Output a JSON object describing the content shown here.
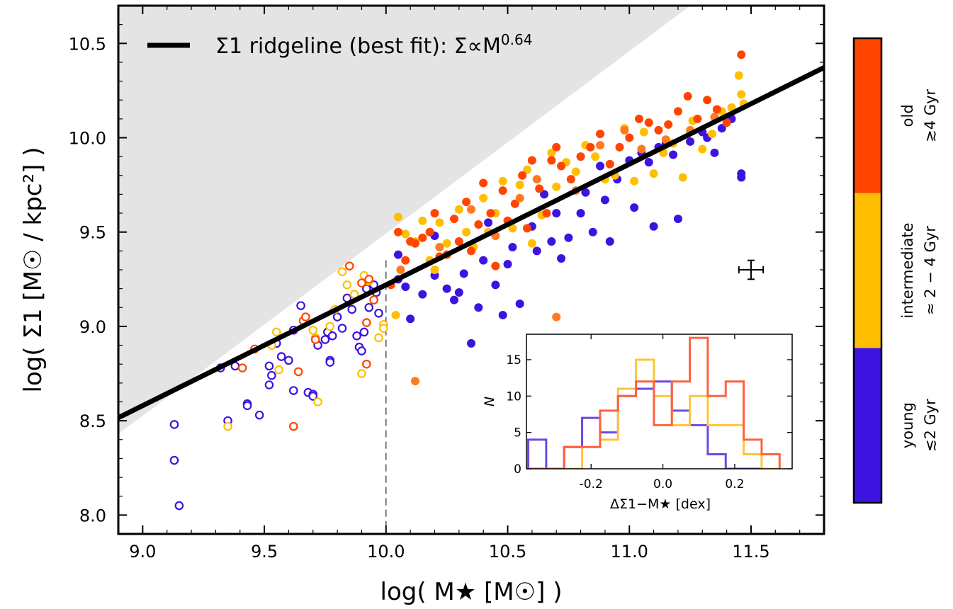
{
  "chart_data": {
    "type": "scatter",
    "xlabel": "log( M★ [M☉] )",
    "ylabel": "log( Σ1 [M☉ / kpc²] )",
    "xlim": [
      8.9,
      11.8
    ],
    "ylim": [
      7.9,
      10.7
    ],
    "xticks": [
      "9.0",
      "9.5",
      "10.0",
      "10.5",
      "11.0",
      "11.5"
    ],
    "yticks": [
      "8.0",
      "8.5",
      "9.0",
      "9.5",
      "10.0",
      "10.5"
    ],
    "grid": false,
    "legend": {
      "placement": "top-left",
      "label": "Σ1 ridgeline (best fit): Σ∝M",
      "exponent": "0.64"
    },
    "ridgeline": {
      "slope": 0.64,
      "pivot_x": 10.0,
      "pivot_y": 9.22
    },
    "forbidden_region": {
      "color": "#e4e4e4",
      "boundary": [
        [
          8.9,
          8.43
        ],
        [
          11.25,
          10.7
        ]
      ]
    },
    "divider_x": 10.0,
    "error_bar": {
      "x": 11.5,
      "y": 9.3,
      "xerr": 0.05,
      "yerr": 0.05
    },
    "colors": {
      "young": "#3d13e0",
      "intermediate": "#ffbf00",
      "old": "#ff4500",
      "mid_old": "#ff7a20",
      "line": "#000000"
    },
    "series": [
      {
        "name": "young",
        "marker": "open",
        "color": "#3d13e0",
        "points": [
          [
            9.13,
            8.48
          ],
          [
            9.13,
            8.29
          ],
          [
            9.15,
            8.05
          ],
          [
            9.32,
            8.78
          ],
          [
            9.35,
            8.5
          ],
          [
            9.38,
            8.79
          ],
          [
            9.43,
            8.59
          ],
          [
            9.43,
            8.58
          ],
          [
            9.48,
            8.53
          ],
          [
            9.52,
            8.79
          ],
          [
            9.52,
            8.69
          ],
          [
            9.53,
            8.74
          ],
          [
            9.55,
            8.91
          ],
          [
            9.57,
            8.84
          ],
          [
            9.6,
            8.82
          ],
          [
            9.62,
            8.66
          ],
          [
            9.62,
            8.98
          ],
          [
            9.65,
            9.11
          ],
          [
            9.68,
            8.65
          ],
          [
            9.7,
            8.64
          ],
          [
            9.7,
            8.63
          ],
          [
            9.72,
            8.9
          ],
          [
            9.75,
            8.93
          ],
          [
            9.76,
            8.97
          ],
          [
            9.77,
            8.82
          ],
          [
            9.77,
            8.81
          ],
          [
            9.78,
            8.95
          ],
          [
            9.8,
            9.05
          ],
          [
            9.82,
            8.99
          ],
          [
            9.84,
            9.15
          ],
          [
            9.86,
            9.09
          ],
          [
            9.88,
            8.95
          ],
          [
            9.89,
            8.89
          ],
          [
            9.9,
            8.87
          ],
          [
            9.91,
            8.97
          ],
          [
            9.92,
            9.2
          ],
          [
            9.93,
            9.1
          ],
          [
            9.95,
            9.22
          ],
          [
            9.96,
            9.18
          ],
          [
            9.97,
            9.07
          ]
        ]
      },
      {
        "name": "intermediate",
        "marker": "open",
        "color": "#ffbf00",
        "points": [
          [
            9.35,
            8.47
          ],
          [
            9.53,
            8.9
          ],
          [
            9.55,
            8.97
          ],
          [
            9.56,
            8.77
          ],
          [
            9.7,
            8.98
          ],
          [
            9.71,
            8.94
          ],
          [
            9.72,
            8.6
          ],
          [
            9.77,
            9.0
          ],
          [
            9.79,
            9.09
          ],
          [
            9.82,
            9.29
          ],
          [
            9.84,
            9.22
          ],
          [
            9.87,
            9.17
          ],
          [
            9.9,
            8.75
          ],
          [
            9.91,
            9.27
          ],
          [
            9.93,
            9.24
          ],
          [
            9.97,
            8.94
          ],
          [
            9.99,
            9.01
          ],
          [
            9.99,
            8.99
          ]
        ]
      },
      {
        "name": "old",
        "marker": "open",
        "color": "#ff4500",
        "points": [
          [
            9.41,
            8.78
          ],
          [
            9.46,
            8.88
          ],
          [
            9.62,
            8.47
          ],
          [
            9.64,
            8.76
          ],
          [
            9.66,
            9.03
          ],
          [
            9.67,
            9.05
          ],
          [
            9.71,
            8.93
          ],
          [
            9.85,
            9.32
          ],
          [
            9.9,
            9.23
          ],
          [
            9.92,
            8.8
          ],
          [
            9.92,
            9.02
          ],
          [
            9.93,
            9.25
          ],
          [
            9.95,
            9.14
          ]
        ]
      },
      {
        "name": "young",
        "marker": "filled",
        "color": "#3d13e0",
        "points": [
          [
            10.05,
            9.38
          ],
          [
            10.05,
            9.25
          ],
          [
            10.08,
            9.21
          ],
          [
            10.1,
            9.04
          ],
          [
            10.15,
            9.17
          ],
          [
            10.2,
            9.48
          ],
          [
            10.2,
            9.27
          ],
          [
            10.25,
            9.2
          ],
          [
            10.28,
            9.14
          ],
          [
            10.3,
            9.18
          ],
          [
            10.32,
            9.28
          ],
          [
            10.35,
            8.91
          ],
          [
            10.38,
            9.1
          ],
          [
            10.4,
            9.35
          ],
          [
            10.42,
            9.55
          ],
          [
            10.45,
            9.22
          ],
          [
            10.48,
            9.06
          ],
          [
            10.5,
            9.33
          ],
          [
            10.52,
            9.42
          ],
          [
            10.55,
            9.12
          ],
          [
            10.6,
            9.53
          ],
          [
            10.62,
            9.4
          ],
          [
            10.65,
            9.7
          ],
          [
            10.68,
            9.45
          ],
          [
            10.7,
            9.6
          ],
          [
            10.72,
            9.36
          ],
          [
            10.75,
            9.47
          ],
          [
            10.8,
            9.6
          ],
          [
            10.82,
            9.71
          ],
          [
            10.85,
            9.5
          ],
          [
            10.88,
            9.85
          ],
          [
            10.9,
            9.67
          ],
          [
            10.92,
            9.45
          ],
          [
            10.95,
            9.78
          ],
          [
            11.0,
            9.88
          ],
          [
            11.02,
            9.63
          ],
          [
            11.05,
            9.92
          ],
          [
            11.08,
            9.87
          ],
          [
            11.1,
            9.53
          ],
          [
            11.12,
            9.95
          ],
          [
            11.15,
            9.97
          ],
          [
            11.18,
            9.91
          ],
          [
            11.2,
            9.57
          ],
          [
            11.25,
            9.98
          ],
          [
            11.3,
            10.03
          ],
          [
            11.32,
            10.0
          ],
          [
            11.35,
            9.92
          ],
          [
            11.38,
            10.05
          ],
          [
            11.42,
            10.1
          ],
          [
            11.46,
            9.79
          ],
          [
            11.46,
            9.81
          ]
        ]
      },
      {
        "name": "intermediate",
        "marker": "filled",
        "color": "#ffbf00",
        "points": [
          [
            10.04,
            9.06
          ],
          [
            10.05,
            9.58
          ],
          [
            10.08,
            9.49
          ],
          [
            10.12,
            9.45
          ],
          [
            10.15,
            9.56
          ],
          [
            10.18,
            9.35
          ],
          [
            10.2,
            9.3
          ],
          [
            10.22,
            9.55
          ],
          [
            10.25,
            9.44
          ],
          [
            10.3,
            9.62
          ],
          [
            10.33,
            9.5
          ],
          [
            10.36,
            9.42
          ],
          [
            10.4,
            9.68
          ],
          [
            10.42,
            9.5
          ],
          [
            10.45,
            9.6
          ],
          [
            10.48,
            9.77
          ],
          [
            10.52,
            9.52
          ],
          [
            10.55,
            9.75
          ],
          [
            10.58,
            9.83
          ],
          [
            10.6,
            9.44
          ],
          [
            10.64,
            9.59
          ],
          [
            10.68,
            9.92
          ],
          [
            10.7,
            9.74
          ],
          [
            10.74,
            9.87
          ],
          [
            10.78,
            9.82
          ],
          [
            10.82,
            9.96
          ],
          [
            10.86,
            9.9
          ],
          [
            10.9,
            9.78
          ],
          [
            10.94,
            9.8
          ],
          [
            10.98,
            10.05
          ],
          [
            11.02,
            9.77
          ],
          [
            11.06,
            10.03
          ],
          [
            11.1,
            9.81
          ],
          [
            11.14,
            9.92
          ],
          [
            11.18,
            9.97
          ],
          [
            11.22,
            9.79
          ],
          [
            11.26,
            10.09
          ],
          [
            11.3,
            9.94
          ],
          [
            11.34,
            10.02
          ],
          [
            11.38,
            10.14
          ],
          [
            11.42,
            10.16
          ],
          [
            11.45,
            10.33
          ],
          [
            11.46,
            10.23
          ],
          [
            11.47,
            10.18
          ]
        ]
      },
      {
        "name": "old",
        "marker": "filled",
        "color": "#ff4500",
        "points": [
          [
            10.02,
            9.22
          ],
          [
            10.05,
            9.5
          ],
          [
            10.08,
            9.35
          ],
          [
            10.1,
            9.45
          ],
          [
            10.12,
            9.44
          ],
          [
            10.15,
            9.47
          ],
          [
            10.18,
            9.5
          ],
          [
            10.2,
            9.6
          ],
          [
            10.22,
            9.37
          ],
          [
            10.25,
            9.38
          ],
          [
            10.28,
            9.57
          ],
          [
            10.3,
            9.45
          ],
          [
            10.33,
            9.66
          ],
          [
            10.35,
            9.4
          ],
          [
            10.38,
            9.54
          ],
          [
            10.4,
            9.76
          ],
          [
            10.43,
            9.6
          ],
          [
            10.45,
            9.32
          ],
          [
            10.48,
            9.72
          ],
          [
            10.5,
            9.56
          ],
          [
            10.53,
            9.65
          ],
          [
            10.56,
            9.8
          ],
          [
            10.58,
            9.52
          ],
          [
            10.6,
            9.88
          ],
          [
            10.63,
            9.73
          ],
          [
            10.66,
            9.6
          ],
          [
            10.68,
            9.88
          ],
          [
            10.7,
            9.95
          ],
          [
            10.72,
            9.85
          ],
          [
            10.76,
            9.78
          ],
          [
            10.8,
            9.9
          ],
          [
            10.84,
            9.95
          ],
          [
            10.88,
            10.02
          ],
          [
            10.92,
            9.86
          ],
          [
            10.96,
            9.95
          ],
          [
            11.0,
            10.0
          ],
          [
            11.04,
            10.1
          ],
          [
            11.08,
            10.08
          ],
          [
            11.12,
            10.04
          ],
          [
            11.16,
            10.07
          ],
          [
            11.2,
            10.14
          ],
          [
            11.24,
            10.22
          ],
          [
            11.28,
            10.1
          ],
          [
            11.32,
            10.2
          ],
          [
            11.36,
            10.15
          ],
          [
            11.4,
            10.08
          ],
          [
            11.46,
            10.44
          ]
        ]
      },
      {
        "name": "mid-old",
        "marker": "filled",
        "color": "#ff7a20",
        "points": [
          [
            10.06,
            9.3
          ],
          [
            10.12,
            8.71
          ],
          [
            10.22,
            9.42
          ],
          [
            10.35,
            9.62
          ],
          [
            10.45,
            9.48
          ],
          [
            10.55,
            9.68
          ],
          [
            10.62,
            9.78
          ],
          [
            10.7,
            9.05
          ],
          [
            10.78,
            9.72
          ],
          [
            10.88,
            9.96
          ],
          [
            10.98,
            10.04
          ],
          [
            11.05,
            9.94
          ],
          [
            11.15,
            9.99
          ],
          [
            11.25,
            10.04
          ],
          [
            11.35,
            10.11
          ]
        ]
      }
    ],
    "inset": {
      "type": "step-histogram",
      "ylabel": "N",
      "xlabel": "ΔΣ1−M★ [dex]",
      "xlim": [
        -0.38,
        0.36
      ],
      "ylim": [
        0,
        18.5
      ],
      "xticks": [
        -0.2,
        0.0,
        0.2
      ],
      "xtick_labels": [
        "-0.2",
        "0.0",
        "0.2"
      ],
      "yticks": [
        0,
        5,
        10,
        15
      ],
      "bin_edges": [
        -0.375,
        -0.325,
        -0.275,
        -0.225,
        -0.175,
        -0.125,
        -0.075,
        -0.025,
        0.025,
        0.075,
        0.125,
        0.175,
        0.225,
        0.275,
        0.325
      ],
      "series": [
        {
          "name": "young",
          "color": "#6f47e8",
          "counts": [
            4,
            0,
            3,
            7,
            5,
            10,
            11,
            12,
            8,
            6,
            2,
            0,
            0,
            0
          ]
        },
        {
          "name": "intermediate",
          "color": "#ffc43a",
          "counts": [
            0,
            0,
            0,
            3,
            4,
            11,
            15,
            10,
            6,
            10,
            6,
            6,
            2,
            0
          ]
        },
        {
          "name": "old",
          "color": "#ff6240",
          "counts": [
            0,
            0,
            3,
            3,
            8,
            10,
            12,
            6,
            12,
            18,
            10,
            12,
            4,
            2
          ]
        }
      ]
    },
    "colorbar": {
      "segments": [
        {
          "name": "young",
          "color": "#3d13e0",
          "label_main": "young",
          "label_sub": "≲2 Gyr"
        },
        {
          "name": "intermediate",
          "color": "#ffbf00",
          "label_main": "intermediate",
          "label_sub": "≈ 2 − 4 Gyr"
        },
        {
          "name": "old",
          "color": "#ff4500",
          "label_main": "old",
          "label_sub": "≳4 Gyr"
        }
      ]
    }
  }
}
